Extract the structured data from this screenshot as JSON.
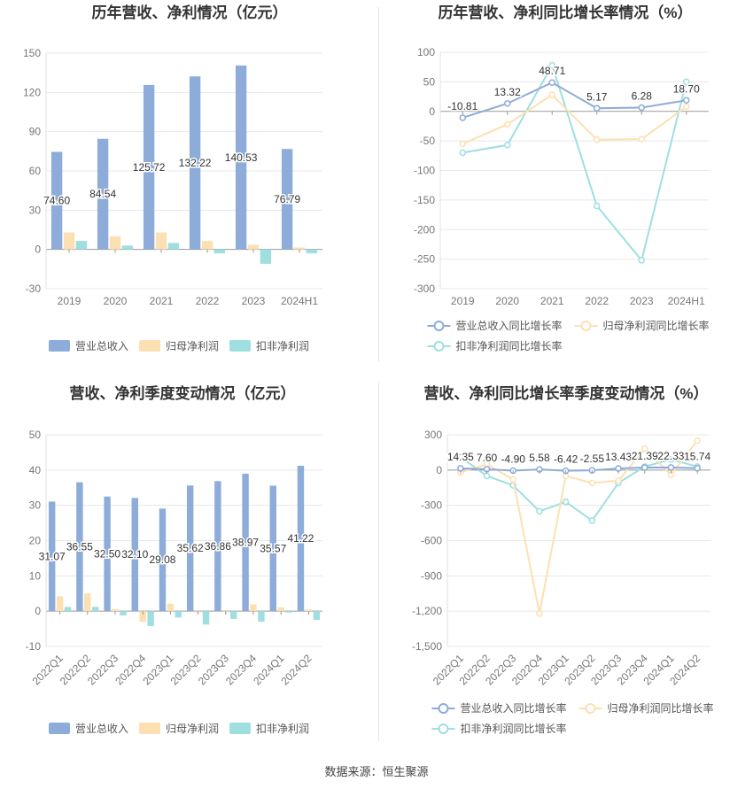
{
  "colors": {
    "revenue": "#8eacd9",
    "parent_profit": "#fde0b2",
    "deducted_profit": "#9fdfe0",
    "grid": "#e8e8e8",
    "axis_text": "#777777",
    "title": "#333333"
  },
  "source_note": "数据来源：恒生聚源",
  "chart_data": [
    {
      "id": "annual-bar",
      "type": "bar",
      "title": "历年营收、净利情况（亿元）",
      "categories": [
        "2019",
        "2020",
        "2021",
        "2022",
        "2023",
        "2024H1"
      ],
      "series": [
        {
          "name": "营业总收入",
          "color_key": "revenue",
          "values": [
            74.6,
            84.54,
            125.72,
            132.22,
            140.53,
            76.79
          ]
        },
        {
          "name": "归母净利润",
          "color_key": "parent_profit",
          "values": [
            13.0,
            10.0,
            13.0,
            6.5,
            3.5,
            1.5
          ]
        },
        {
          "name": "扣非净利润",
          "color_key": "deducted_profit",
          "values": [
            6.5,
            3.0,
            5.0,
            -3.0,
            -11.0,
            -3.0
          ]
        }
      ],
      "data_labels": [
        "74.60",
        "84.54",
        "125.72",
        "132.22",
        "140.53",
        "76.79"
      ],
      "ylim": [
        -30,
        150
      ],
      "yticks": [
        -30,
        0,
        30,
        60,
        90,
        120,
        150
      ],
      "grid": true,
      "legend": "bottom"
    },
    {
      "id": "annual-line",
      "type": "line",
      "title": "历年营收、净利同比增长率情况（%）",
      "categories": [
        "2019",
        "2020",
        "2021",
        "2022",
        "2023",
        "2024H1"
      ],
      "series": [
        {
          "name": "营业总收入同比增长率",
          "color_key": "revenue",
          "values": [
            -10.81,
            13.32,
            48.71,
            5.17,
            6.28,
            18.7
          ]
        },
        {
          "name": "归母净利润同比增长率",
          "color_key": "parent_profit",
          "values": [
            -55,
            -22,
            28,
            -48,
            -47,
            8
          ]
        },
        {
          "name": "扣非净利润同比增长率",
          "color_key": "deducted_profit",
          "values": [
            -70,
            -57,
            78,
            -160,
            -252,
            50
          ]
        }
      ],
      "data_labels": [
        "-10.81",
        "13.32",
        "48.71",
        "5.17",
        "6.28",
        "18.70"
      ],
      "ylim": [
        -300,
        100
      ],
      "yticks": [
        -300,
        -250,
        -200,
        -150,
        -100,
        -50,
        0,
        50,
        100
      ],
      "grid": true,
      "legend": "bottom"
    },
    {
      "id": "quarterly-bar",
      "type": "bar",
      "title": "营收、净利季度变动情况（亿元）",
      "categories": [
        "2022Q1",
        "2022Q2",
        "2022Q3",
        "2022Q4",
        "2023Q1",
        "2023Q2",
        "2023Q3",
        "2023Q4",
        "2024Q1",
        "2024Q2"
      ],
      "series": [
        {
          "name": "营业总收入",
          "color_key": "revenue",
          "values": [
            31.07,
            36.55,
            32.5,
            32.1,
            29.08,
            35.62,
            36.86,
            38.97,
            35.57,
            41.22
          ]
        },
        {
          "name": "归母净利润",
          "color_key": "parent_profit",
          "values": [
            4.2,
            5.0,
            0.6,
            -3.0,
            2.1,
            -0.4,
            0.0,
            1.9,
            1.1,
            0.5
          ]
        },
        {
          "name": "扣非净利润",
          "color_key": "deducted_profit",
          "values": [
            1.2,
            1.2,
            -1.2,
            -4.2,
            -1.8,
            -3.8,
            -2.2,
            -3.0,
            -0.4,
            -2.5
          ]
        }
      ],
      "data_labels": [
        "31.07",
        "36.55",
        "32.50",
        "32.10",
        "29.08",
        "35.62",
        "36.86",
        "38.97",
        "35.57",
        "41.22"
      ],
      "ylim": [
        -10,
        50
      ],
      "yticks": [
        -10,
        0,
        10,
        20,
        30,
        40,
        50
      ],
      "grid": true,
      "legend": "bottom"
    },
    {
      "id": "quarterly-line",
      "type": "line",
      "title": "营收、净利同比增长率季度变动情况（%）",
      "categories": [
        "2022Q1",
        "2022Q2",
        "2022Q3",
        "2022Q4",
        "2023Q1",
        "2023Q2",
        "2023Q3",
        "2023Q4",
        "2024Q1",
        "2024Q2"
      ],
      "series": [
        {
          "name": "营业总收入同比增长率",
          "color_key": "revenue",
          "values": [
            14.35,
            7.6,
            -4.9,
            5.58,
            -6.42,
            -2.55,
            13.43,
            21.39,
            22.33,
            15.74
          ]
        },
        {
          "name": "归母净利润同比增长率",
          "color_key": "parent_profit",
          "values": [
            -20,
            50,
            -80,
            -1220,
            -50,
            -110,
            -90,
            180,
            -40,
            250
          ]
        },
        {
          "name": "扣非净利润同比增长率",
          "color_key": "deducted_profit",
          "values": [
            110,
            -50,
            -130,
            -350,
            -270,
            -430,
            -110,
            30,
            90,
            30
          ]
        }
      ],
      "data_labels": [
        "14.35",
        "7.60",
        "-4.90",
        "5.58",
        "-6.42",
        "-2.55",
        "13.43",
        "21.39",
        "22.33",
        "15.74"
      ],
      "ylim": [
        -1500,
        300
      ],
      "yticks": [
        -1500,
        -1200,
        -900,
        -600,
        -300,
        0,
        300
      ],
      "ytick_labels": [
        "-1,500",
        "-1,200",
        "-900",
        "-600",
        "-300",
        "0",
        "300"
      ],
      "grid": true,
      "legend": "bottom"
    }
  ]
}
